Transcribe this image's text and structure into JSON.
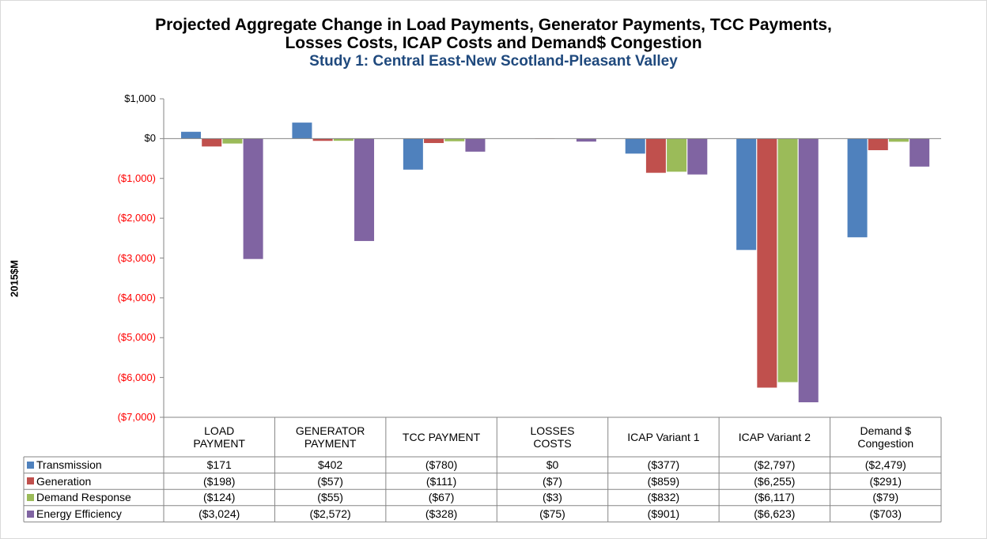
{
  "chart_data": {
    "type": "bar",
    "title": "Projected Aggregate Change in Load Payments, Generator Payments, TCC Payments, Losses Costs, ICAP Costs and Demand$ Congestion",
    "subtitle": "Study 1: Central East-New Scotland-Pleasant Valley",
    "y_label": "2015$M",
    "categories": [
      "LOAD PAYMENT",
      "GENERATOR PAYMENT",
      "TCC PAYMENT",
      "LOSSES COSTS",
      "ICAP Variant 1",
      "ICAP Variant 2",
      "Demand $ Congestion"
    ],
    "series": [
      {
        "name": "Transmission",
        "color": "#4f81bd",
        "values": [
          171,
          402,
          -780,
          0,
          -377,
          -2797,
          -2479
        ],
        "value_labels": [
          "$171",
          "$402",
          "($780)",
          "$0",
          "($377)",
          "($2,797)",
          "($2,479)"
        ]
      },
      {
        "name": "Generation",
        "color": "#c0504d",
        "values": [
          -198,
          -57,
          -111,
          -7,
          -859,
          -6255,
          -291
        ],
        "value_labels": [
          "($198)",
          "($57)",
          "($111)",
          "($7)",
          "($859)",
          "($6,255)",
          "($291)"
        ]
      },
      {
        "name": "Demand Response",
        "color": "#9bbb59",
        "values": [
          -124,
          -55,
          -67,
          -3,
          -832,
          -6117,
          -79
        ],
        "value_labels": [
          "($124)",
          "($55)",
          "($67)",
          "($3)",
          "($832)",
          "($6,117)",
          "($79)"
        ]
      },
      {
        "name": "Energy Efficiency",
        "color": "#8064a2",
        "values": [
          -3024,
          -2572,
          -328,
          -75,
          -901,
          -6623,
          -703
        ],
        "value_labels": [
          "($3,024)",
          "($2,572)",
          "($328)",
          "($75)",
          "($901)",
          "($6,623)",
          "($703)"
        ]
      }
    ],
    "ylim": [
      -7000,
      1000
    ],
    "yticks": [
      {
        "value": 1000,
        "label": "$1,000"
      },
      {
        "value": 0,
        "label": "$0"
      },
      {
        "value": -1000,
        "label": "($1,000)"
      },
      {
        "value": -2000,
        "label": "($2,000)"
      },
      {
        "value": -3000,
        "label": "($3,000)"
      },
      {
        "value": -4000,
        "label": "($4,000)"
      },
      {
        "value": -5000,
        "label": "($5,000)"
      },
      {
        "value": -6000,
        "label": "($6,000)"
      },
      {
        "value": -7000,
        "label": "($7,000)"
      }
    ],
    "negative_tick_color": "#ff0000",
    "grid": false
  }
}
